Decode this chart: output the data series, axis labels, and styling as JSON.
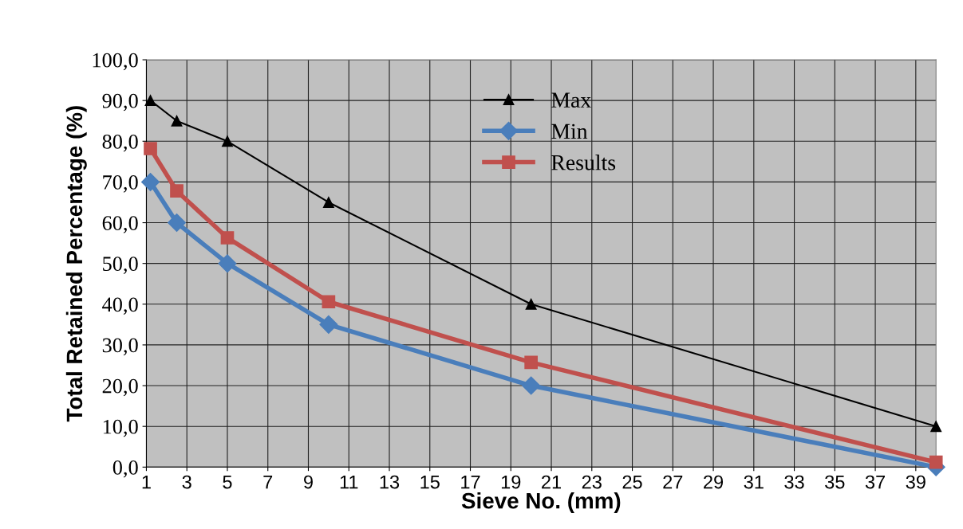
{
  "chart_data": {
    "type": "line",
    "xlabel": "Sieve No. (mm)",
    "ylabel": "Total Retained Percentage (%)",
    "xlim": [
      1,
      40
    ],
    "xticks": [
      1,
      3,
      5,
      7,
      9,
      11,
      13,
      15,
      17,
      19,
      21,
      23,
      25,
      27,
      29,
      31,
      33,
      35,
      37,
      39
    ],
    "ylim": [
      0,
      100
    ],
    "yticks": [
      {
        "value": 0,
        "label": "0,0"
      },
      {
        "value": 10,
        "label": "10,0"
      },
      {
        "value": 20,
        "label": "20,0"
      },
      {
        "value": 30,
        "label": "30,0"
      },
      {
        "value": 40,
        "label": "40,0"
      },
      {
        "value": 50,
        "label": "50,0"
      },
      {
        "value": 60,
        "label": "60,0"
      },
      {
        "value": 70,
        "label": "70,0"
      },
      {
        "value": 80,
        "label": "80,0"
      },
      {
        "value": 90,
        "label": "90,0"
      },
      {
        "value": 100,
        "label": "100,0"
      }
    ],
    "grid": true,
    "legend": "top right",
    "series": [
      {
        "name": "Max",
        "color": "#000000",
        "marker": "triangle",
        "x": [
          1.2,
          2.5,
          5,
          10,
          20,
          40
        ],
        "values": [
          90,
          85,
          80,
          65,
          40,
          10
        ]
      },
      {
        "name": "Min",
        "color": "#4a7ebb",
        "marker": "diamond",
        "x": [
          1.2,
          2.5,
          5,
          10,
          20,
          40
        ],
        "values": [
          70,
          60,
          50,
          35,
          20,
          0
        ]
      },
      {
        "name": "Results",
        "color": "#c0504d",
        "marker": "square",
        "x": [
          1.2,
          2.5,
          5,
          10,
          20,
          40
        ],
        "values": [
          78.2,
          67.8,
          56.3,
          40.6,
          25.7,
          1.2
        ]
      }
    ]
  }
}
